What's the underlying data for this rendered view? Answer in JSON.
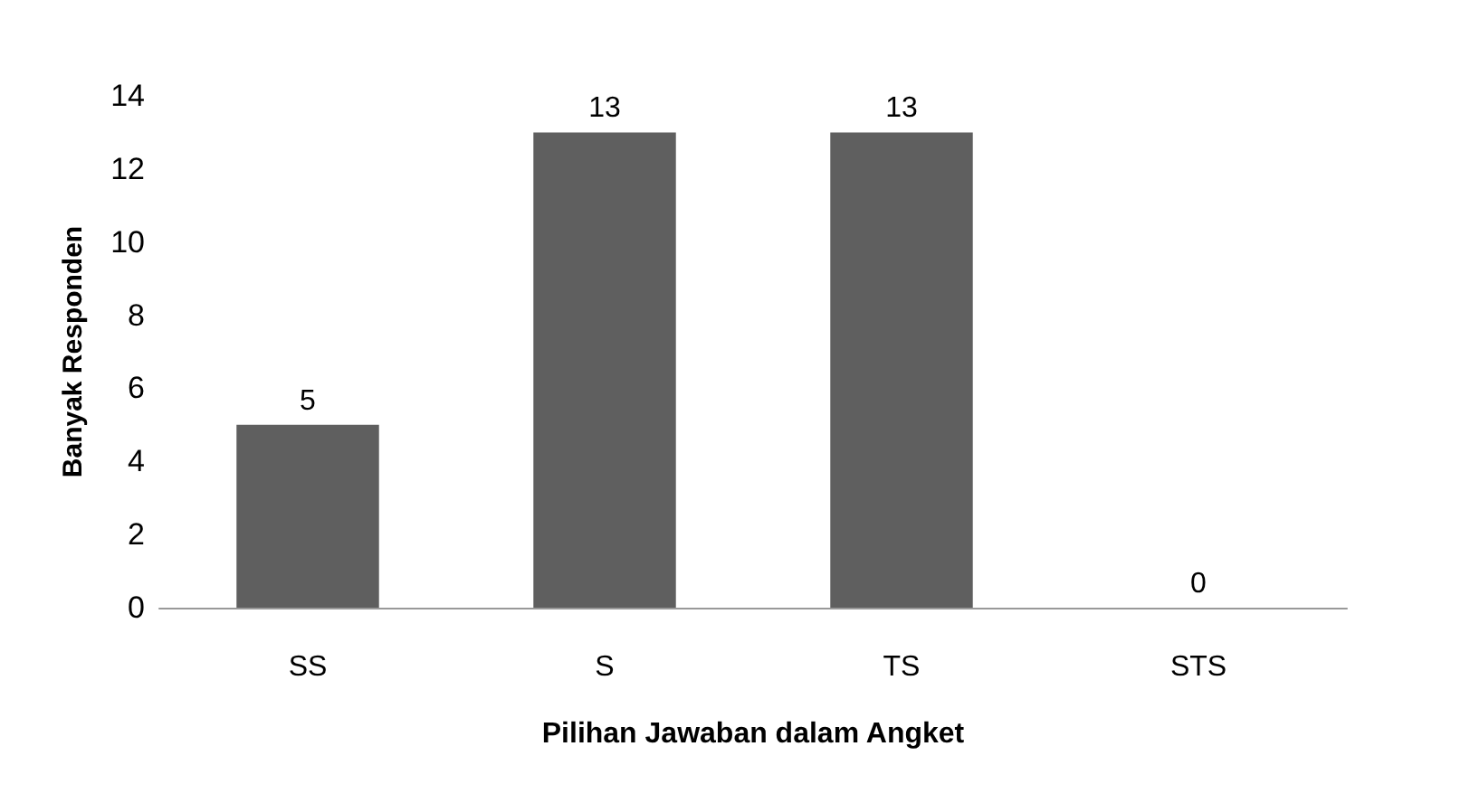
{
  "chart_data": {
    "type": "bar",
    "xlabel": "Pilihan Jawaban dalam Angket",
    "ylabel": "Banyak Responden",
    "categories": [
      "SS",
      "S",
      "TS",
      "STS"
    ],
    "values": [
      5,
      13,
      13,
      0
    ],
    "color": "#5f5f5f",
    "ylim": [
      0,
      14
    ],
    "yticks": [
      0,
      2,
      4,
      6,
      8,
      10,
      12,
      14
    ],
    "grid": false,
    "data_labels": true
  }
}
